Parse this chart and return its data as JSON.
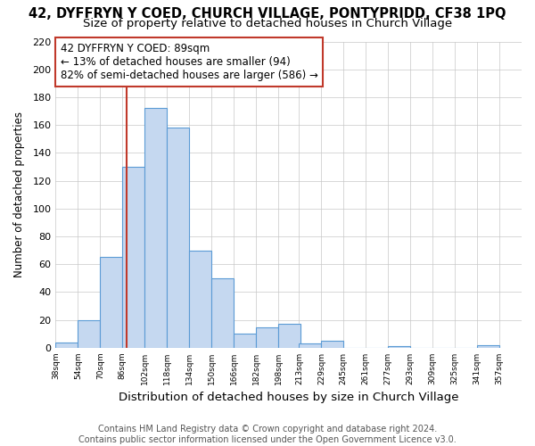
{
  "title_line1": "42, DYFFRYN Y COED, CHURCH VILLAGE, PONTYPRIDD, CF38 1PQ",
  "title_line2": "Size of property relative to detached houses in Church Village",
  "xlabel": "Distribution of detached houses by size in Church Village",
  "ylabel": "Number of detached properties",
  "bar_left_edges": [
    38,
    54,
    70,
    86,
    102,
    118,
    134,
    150,
    166,
    182,
    198,
    213,
    229,
    245,
    261,
    277,
    293,
    309,
    325,
    341
  ],
  "bar_heights": [
    4,
    20,
    65,
    130,
    172,
    158,
    70,
    50,
    10,
    15,
    17,
    3,
    5,
    0,
    0,
    1,
    0,
    0,
    0,
    2
  ],
  "bin_width": 16,
  "bar_color": "#c5d8f0",
  "bar_edge_color": "#5b9bd5",
  "grid_color": "#c8c8c8",
  "vline_x": 89,
  "vline_color": "#c0392b",
  "annotation_line1": "42 DYFFRYN Y COED: 89sqm",
  "annotation_line2": "← 13% of detached houses are smaller (94)",
  "annotation_line3": "82% of semi-detached houses are larger (586) →",
  "annotation_box_color": "#ffffff",
  "annotation_box_edge_color": "#c0392b",
  "ylim": [
    0,
    220
  ],
  "yticks": [
    0,
    20,
    40,
    60,
    80,
    100,
    120,
    140,
    160,
    180,
    200,
    220
  ],
  "xtick_labels": [
    "38sqm",
    "54sqm",
    "70sqm",
    "86sqm",
    "102sqm",
    "118sqm",
    "134sqm",
    "150sqm",
    "166sqm",
    "182sqm",
    "198sqm",
    "213sqm",
    "229sqm",
    "245sqm",
    "261sqm",
    "277sqm",
    "293sqm",
    "309sqm",
    "325sqm",
    "341sqm",
    "357sqm"
  ],
  "footer_line1": "Contains HM Land Registry data © Crown copyright and database right 2024.",
  "footer_line2": "Contains public sector information licensed under the Open Government Licence v3.0.",
  "background_color": "#ffffff",
  "title1_fontsize": 10.5,
  "title2_fontsize": 9.5,
  "annotation_fontsize": 8.5,
  "xlabel_fontsize": 9.5,
  "ylabel_fontsize": 8.5,
  "footer_fontsize": 7.0,
  "xlim_left": 38,
  "xlim_right": 373
}
